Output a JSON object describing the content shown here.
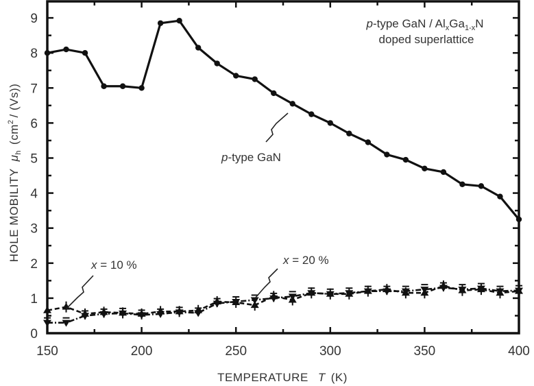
{
  "chart_data": {
    "type": "line",
    "title": "",
    "xlabel": "TEMPERATURE  T (K)",
    "ylabel": "HOLE MOBILITY  μh  (cm²/ (Vs))",
    "xlim": [
      150,
      400
    ],
    "ylim": [
      0,
      9.5
    ],
    "xticks": [
      150,
      200,
      250,
      300,
      350,
      400
    ],
    "yticks": [
      0,
      1,
      2,
      3,
      4,
      5,
      6,
      7,
      8,
      9
    ],
    "grid": false,
    "legend": "none (inline annotations)",
    "x": [
      150,
      160,
      170,
      180,
      190,
      200,
      210,
      220,
      230,
      240,
      250,
      260,
      270,
      280,
      290,
      300,
      310,
      320,
      330,
      340,
      350,
      360,
      370,
      380,
      390,
      400
    ],
    "series": [
      {
        "name": "p-type GaN",
        "style": "solid",
        "marker": "circle",
        "values": [
          8.0,
          8.1,
          8.0,
          7.05,
          7.05,
          7.0,
          8.85,
          8.92,
          8.15,
          7.7,
          7.35,
          7.25,
          6.85,
          6.55,
          6.25,
          6.0,
          5.7,
          5.45,
          5.1,
          4.95,
          4.7,
          4.6,
          4.25,
          4.2,
          3.9,
          3.25
        ]
      },
      {
        "name": "x = 10 %",
        "style": "dashed",
        "marker": "triangle-up",
        "values": [
          0.65,
          0.75,
          0.55,
          0.6,
          0.58,
          0.55,
          0.62,
          0.62,
          0.65,
          0.9,
          0.88,
          0.8,
          1.05,
          0.95,
          1.15,
          1.12,
          1.12,
          1.2,
          1.25,
          1.15,
          1.15,
          1.35,
          1.22,
          1.25,
          1.15,
          1.2
        ]
      },
      {
        "name": "x = 20 %",
        "style": "dash-dot",
        "marker": "triangle-down",
        "values": [
          0.3,
          0.3,
          0.5,
          0.55,
          0.57,
          0.52,
          0.55,
          0.6,
          0.58,
          0.85,
          0.9,
          0.95,
          1.0,
          1.05,
          1.15,
          1.12,
          1.15,
          1.2,
          1.2,
          1.2,
          1.25,
          1.3,
          1.25,
          1.28,
          1.2,
          1.22
        ]
      }
    ],
    "annotations": [
      {
        "text": "p-type GaN/AlxGa1-xN doped superlattice",
        "position": "top-right"
      },
      {
        "text": "p-type GaN",
        "target_series": "p-type GaN"
      },
      {
        "text": "x = 10 %",
        "target_series": "x = 10 %"
      },
      {
        "text": "x = 20 %",
        "target_series": "x = 20 %"
      }
    ]
  },
  "labels": {
    "xlabel_main": "TEMPERATURE",
    "xlabel_var": "T",
    "xlabel_unit": "(K)",
    "ylabel_main": "HOLE MOBILITY",
    "ylabel_var": "μ",
    "ylabel_sub": "h",
    "ylabel_unit_pre": "(cm",
    "ylabel_unit_sup": "2",
    "ylabel_unit_post": "/ (Vs))",
    "title_line1_a": "p",
    "title_line1_b": "-type GaN / Al",
    "title_line1_sub1": "x",
    "title_line1_c": "Ga",
    "title_line1_sub2": "1-x",
    "title_line1_d": "N",
    "title_line2": "doped superlattice",
    "gan_label_p": "p",
    "gan_label_rest": "-type GaN",
    "x10_var": "x",
    "x10_rest": " = 10 %",
    "x20_var": "x",
    "x20_rest": " = 20 %"
  }
}
